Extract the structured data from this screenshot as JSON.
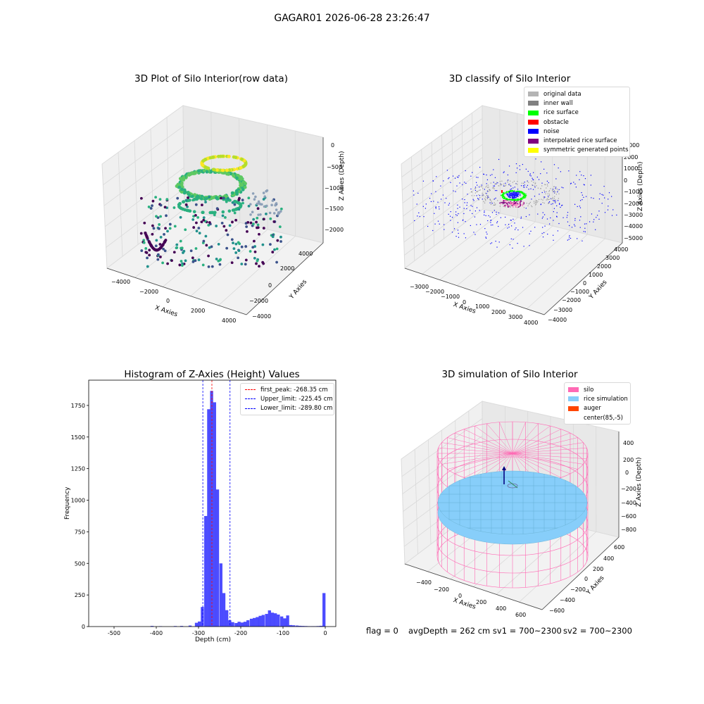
{
  "suptitle": "GAGAR01 2026-06-28 23:26:47",
  "panels": {
    "raw": {
      "title": "3D Plot of Silo Interior(row data)",
      "xlabel": "X Axies",
      "ylabel": "Y Axies",
      "zlabel": "Z Axies (Depth)",
      "xticks": [
        "−4000",
        "−2000",
        "0",
        "2000",
        "4000"
      ],
      "yticks": [
        "4000",
        "2000",
        "0",
        "−2000",
        "−4000"
      ],
      "zticks": [
        "0",
        "−500",
        "−1000",
        "−1500",
        "−2000"
      ]
    },
    "classify": {
      "title": "3D classify of Silo Interior",
      "xlabel": "X Axies",
      "ylabel": "Y Axies",
      "zlabel": "Z Axies (Depth)",
      "xticks": [
        "−3000",
        "−2000",
        "−1000",
        "0",
        "1000",
        "2000",
        "3000",
        "4000"
      ],
      "yticks": [
        "4000",
        "3000",
        "2000",
        "1000",
        "0",
        "−1000",
        "−2000",
        "−3000",
        "−4000"
      ],
      "zticks": [
        "3000",
        "2000",
        "1000",
        "0",
        "−1000",
        "−2000",
        "−3000",
        "−4000",
        "−5000"
      ],
      "legend": [
        {
          "label": "original data",
          "color": "#b4b4b4"
        },
        {
          "label": "inner wall",
          "color": "#808080"
        },
        {
          "label": "rice surface",
          "color": "#00ff00"
        },
        {
          "label": "obstacle",
          "color": "#ff0000"
        },
        {
          "label": "noise",
          "color": "#0000ff"
        },
        {
          "label": "interpolated rice surface",
          "color": "#800080"
        },
        {
          "label": "symmetric generated points",
          "color": "#ffff00"
        }
      ]
    },
    "histogram": {
      "title": "Histogram of Z-Axies (Height) Values",
      "xlabel": "Depth (cm)",
      "ylabel": "Frequency",
      "legend": [
        {
          "label": "first_peak: -268.35 cm",
          "color": "#ff0000"
        },
        {
          "label": "Upper_limit: -225.45 cm",
          "color": "#0000ff"
        },
        {
          "label": "Lower_limit: -289.80 cm",
          "color": "#0000ff"
        }
      ]
    },
    "simulation": {
      "title": "3D simulation of Silo Interior",
      "xlabel": "X Axies",
      "ylabel": "Y Axies",
      "zlabel": "Z Axies (Depth)",
      "xticks": [
        "−400",
        "−200",
        "0",
        "200",
        "400",
        "600"
      ],
      "yticks": [
        "600",
        "400",
        "200",
        "0",
        "−200",
        "−400",
        "−600"
      ],
      "zticks": [
        "400",
        "200",
        "0",
        "−200",
        "−400",
        "−600",
        "−800"
      ],
      "legend": [
        {
          "label": "silo",
          "color": "#ff69b4"
        },
        {
          "label": "rice simulation",
          "color": "#87cefa"
        },
        {
          "label": "auger",
          "color": "#ff4500"
        },
        {
          "label": "center(85,-5)",
          "color": "#ffffff"
        }
      ]
    }
  },
  "footer": {
    "flag": "flag = 0",
    "avg": "avgDepth = 262 cm  sv1 = 700~2300",
    "sv2": "sv2 = 700~2300"
  },
  "chart_data": [
    {
      "type": "scatter",
      "title": "3D Plot of Silo Interior(row data)",
      "xlabel": "X Axies",
      "ylabel": "Y Axies",
      "zlabel": "Z Axies (Depth)",
      "xlim": [
        -4500,
        4500
      ],
      "ylim": [
        -4500,
        4500
      ],
      "zlim": [
        -2200,
        100
      ]
    },
    {
      "type": "scatter",
      "title": "3D classify of Silo Interior",
      "xlim": [
        -3500,
        4200
      ],
      "ylim": [
        -4200,
        4200
      ],
      "zlim": [
        -5200,
        3200
      ],
      "series": [
        {
          "name": "original data"
        },
        {
          "name": "inner wall"
        },
        {
          "name": "rice surface"
        },
        {
          "name": "obstacle"
        },
        {
          "name": "noise"
        },
        {
          "name": "interpolated rice surface"
        },
        {
          "name": "symmetric generated points"
        }
      ]
    },
    {
      "type": "bar",
      "title": "Histogram of Z-Axies (Height) Values",
      "xlabel": "Depth (cm)",
      "ylabel": "Frequency",
      "xlim": [
        -560,
        25
      ],
      "ylim": [
        0,
        1950
      ],
      "xticks": [
        -500,
        -400,
        -300,
        -200,
        -100,
        0
      ],
      "yticks": [
        0,
        250,
        500,
        750,
        1000,
        1250,
        1500,
        1750
      ],
      "bin_width": 7.2,
      "bins": [
        {
          "x": -410,
          "y": 5
        },
        {
          "x": -390,
          "y": 3
        },
        {
          "x": -355,
          "y": 4
        },
        {
          "x": -340,
          "y": 5
        },
        {
          "x": -320,
          "y": 8
        },
        {
          "x": -305,
          "y": 30
        },
        {
          "x": -298,
          "y": 40
        },
        {
          "x": -291,
          "y": 155
        },
        {
          "x": -283,
          "y": 875
        },
        {
          "x": -276,
          "y": 1720
        },
        {
          "x": -269,
          "y": 1865
        },
        {
          "x": -262,
          "y": 1775
        },
        {
          "x": -255,
          "y": 1085
        },
        {
          "x": -247,
          "y": 500
        },
        {
          "x": -240,
          "y": 265
        },
        {
          "x": -233,
          "y": 130
        },
        {
          "x": -226,
          "y": 50
        },
        {
          "x": -219,
          "y": 35
        },
        {
          "x": -211,
          "y": 28
        },
        {
          "x": -204,
          "y": 38
        },
        {
          "x": -197,
          "y": 32
        },
        {
          "x": -190,
          "y": 38
        },
        {
          "x": -183,
          "y": 50
        },
        {
          "x": -175,
          "y": 62
        },
        {
          "x": -168,
          "y": 68
        },
        {
          "x": -161,
          "y": 75
        },
        {
          "x": -154,
          "y": 85
        },
        {
          "x": -147,
          "y": 92
        },
        {
          "x": -139,
          "y": 100
        },
        {
          "x": -132,
          "y": 128
        },
        {
          "x": -125,
          "y": 110
        },
        {
          "x": -118,
          "y": 105
        },
        {
          "x": -111,
          "y": 95
        },
        {
          "x": -103,
          "y": 80
        },
        {
          "x": -96,
          "y": 65
        },
        {
          "x": -89,
          "y": 88
        },
        {
          "x": -82,
          "y": 12
        },
        {
          "x": -75,
          "y": 10
        },
        {
          "x": -67,
          "y": 8
        },
        {
          "x": -60,
          "y": 6
        },
        {
          "x": -53,
          "y": 5
        },
        {
          "x": -46,
          "y": 4
        },
        {
          "x": -39,
          "y": 3
        },
        {
          "x": -31,
          "y": 3
        },
        {
          "x": -24,
          "y": 3
        },
        {
          "x": -17,
          "y": 4
        },
        {
          "x": -10,
          "y": 6
        },
        {
          "x": -3,
          "y": 265
        }
      ],
      "vlines": [
        {
          "name": "first_peak",
          "value": -268.35,
          "color": "#ff0000"
        },
        {
          "name": "Upper_limit",
          "value": -225.45,
          "color": "#0000ff"
        },
        {
          "name": "Lower_limit",
          "value": -289.8,
          "color": "#0000ff"
        }
      ]
    },
    {
      "type": "scatter",
      "title": "3D simulation of Silo Interior",
      "xlim": [
        -500,
        700
      ],
      "ylim": [
        -700,
        700
      ],
      "zlim": [
        -900,
        450
      ],
      "series": [
        {
          "name": "silo"
        },
        {
          "name": "rice simulation"
        },
        {
          "name": "auger"
        },
        {
          "name": "center(85,-5)"
        }
      ]
    }
  ]
}
